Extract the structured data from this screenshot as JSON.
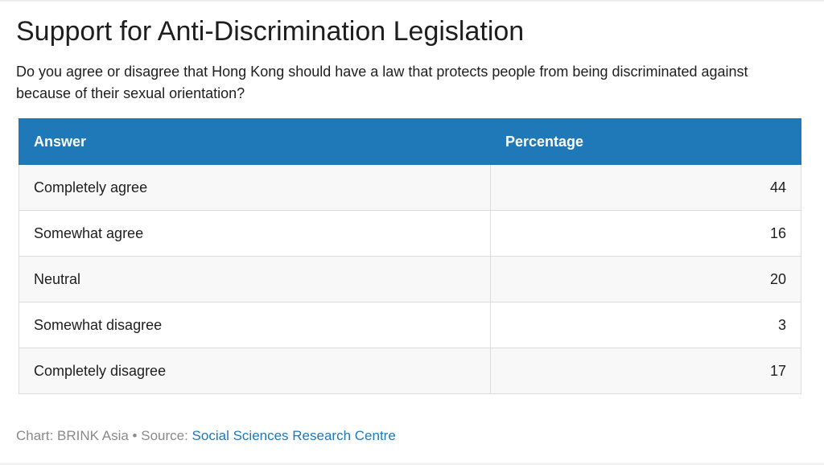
{
  "title": "Support for Anti-Discrimination Legislation",
  "subtitle": "Do you agree or disagree that Hong Kong should have a law that protects people from being discriminated against because of their sexual orientation?",
  "chart_data": {
    "type": "table",
    "columns": [
      "Answer",
      "Percentage"
    ],
    "rows": [
      {
        "answer": "Completely agree",
        "percentage": 44
      },
      {
        "answer": "Somewhat agree",
        "percentage": 16
      },
      {
        "answer": "Neutral",
        "percentage": 20
      },
      {
        "answer": "Somewhat disagree",
        "percentage": 3
      },
      {
        "answer": "Completely disagree",
        "percentage": 17
      }
    ]
  },
  "colors": {
    "header_bg": "#1f78b7",
    "link": "#1f78b7",
    "footer_text": "#8a8a8a"
  },
  "footer": {
    "chart_label": "Chart: BRINK Asia",
    "separator": " • ",
    "source_label": "Source: ",
    "source_link": "Social Sciences Research Centre"
  }
}
